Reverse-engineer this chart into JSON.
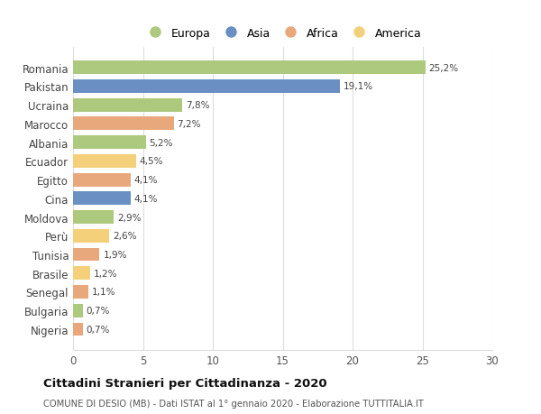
{
  "categories": [
    "Romania",
    "Pakistan",
    "Ucraina",
    "Marocco",
    "Albania",
    "Ecuador",
    "Egitto",
    "Cina",
    "Moldova",
    "Perù",
    "Tunisia",
    "Brasile",
    "Senegal",
    "Bulgaria",
    "Nigeria"
  ],
  "values": [
    25.2,
    19.1,
    7.8,
    7.2,
    5.2,
    4.5,
    4.1,
    4.1,
    2.9,
    2.6,
    1.9,
    1.2,
    1.1,
    0.7,
    0.7
  ],
  "labels": [
    "25,2%",
    "19,1%",
    "7,8%",
    "7,2%",
    "5,2%",
    "4,5%",
    "4,1%",
    "4,1%",
    "2,9%",
    "2,6%",
    "1,9%",
    "1,2%",
    "1,1%",
    "0,7%",
    "0,7%"
  ],
  "colors": [
    "#adc97e",
    "#6a8fc2",
    "#adc97e",
    "#e8a87c",
    "#adc97e",
    "#f5d07a",
    "#e8a87c",
    "#6a8fc2",
    "#adc97e",
    "#f5d07a",
    "#e8a87c",
    "#f5d07a",
    "#e8a87c",
    "#adc97e",
    "#e8a87c"
  ],
  "legend_labels": [
    "Europa",
    "Asia",
    "Africa",
    "America"
  ],
  "legend_colors": [
    "#adc97e",
    "#6a8fc2",
    "#e8a87c",
    "#f5d07a"
  ],
  "title": "Cittadini Stranieri per Cittadinanza - 2020",
  "subtitle": "COMUNE DI DESIO (MB) - Dati ISTAT al 1° gennaio 2020 - Elaborazione TUTTITALIA.IT",
  "xlim": [
    0,
    30
  ],
  "xticks": [
    0,
    5,
    10,
    15,
    20,
    25,
    30
  ],
  "background_color": "#ffffff",
  "grid_color": "#dddddd"
}
